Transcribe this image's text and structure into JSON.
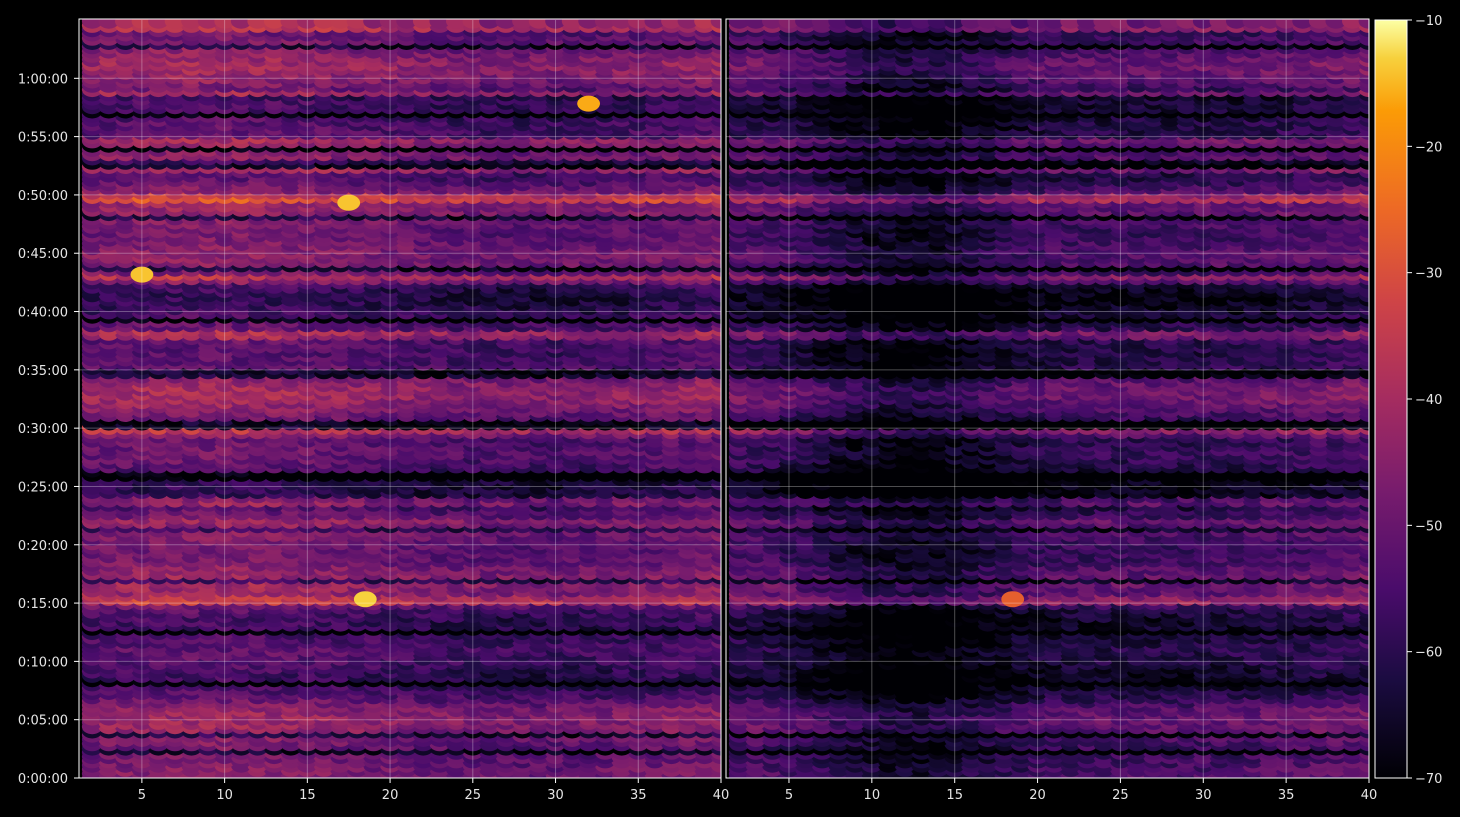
{
  "chart_data": {
    "type": "heatmap",
    "title": "",
    "xlabel": "",
    "ylabel": "",
    "grid": true,
    "panels": [
      {
        "name": "",
        "xlim": [
          1.2,
          40
        ],
        "xticks": [
          "5",
          "10",
          "15",
          "20",
          "25",
          "30",
          "35",
          "40"
        ],
        "xtick_values": [
          5,
          10,
          15,
          20,
          25,
          30,
          35,
          40
        ]
      },
      {
        "name": "",
        "xlim": [
          1.2,
          40
        ],
        "xticks": [
          "5",
          "10",
          "15",
          "20",
          "25",
          "30",
          "35",
          "40"
        ],
        "xtick_values": [
          5,
          10,
          15,
          20,
          25,
          30,
          35,
          40
        ]
      }
    ],
    "y_unit": "seconds",
    "ylim": [
      0,
      3900
    ],
    "yticks": [
      "0:00:00",
      "0:05:00",
      "0:10:00",
      "0:15:00",
      "0:20:00",
      "0:25:00",
      "0:30:00",
      "0:35:00",
      "0:40:00",
      "0:45:00",
      "0:50:00",
      "0:55:00",
      "1:00:00"
    ],
    "ytick_values": [
      0,
      300,
      600,
      900,
      1200,
      1500,
      1800,
      2100,
      2400,
      2700,
      3000,
      3300,
      3600
    ],
    "colorbar": {
      "range": [
        -70,
        -10
      ],
      "ticks": [
        "−10",
        "−20",
        "−30",
        "−40",
        "−50",
        "−60",
        "−70"
      ],
      "tick_values": [
        -10,
        -20,
        -30,
        -40,
        -50,
        -60,
        -70
      ],
      "colormap": "inferno"
    },
    "bright_rows_seconds": [
      3000,
      2590,
      3220,
      3290,
      2300,
      1440,
      1800,
      1320,
      930,
      3150,
      3880,
      3530
    ],
    "notable_points": [
      {
        "panel": 0,
        "x": 18.5,
        "y_seconds": 920,
        "value": -13
      },
      {
        "panel": 1,
        "x": 18.5,
        "y_seconds": 920,
        "value": -27
      },
      {
        "panel": 0,
        "x": 17.5,
        "y_seconds": 2960,
        "value": -14
      },
      {
        "panel": 0,
        "x": 5,
        "y_seconds": 2590,
        "value": -14
      },
      {
        "panel": 0,
        "x": 32,
        "y_seconds": 3470,
        "value": -16
      }
    ]
  },
  "colors": {
    "background": "#000000",
    "grid": "#ffffff",
    "text": "#e6e6e6"
  }
}
